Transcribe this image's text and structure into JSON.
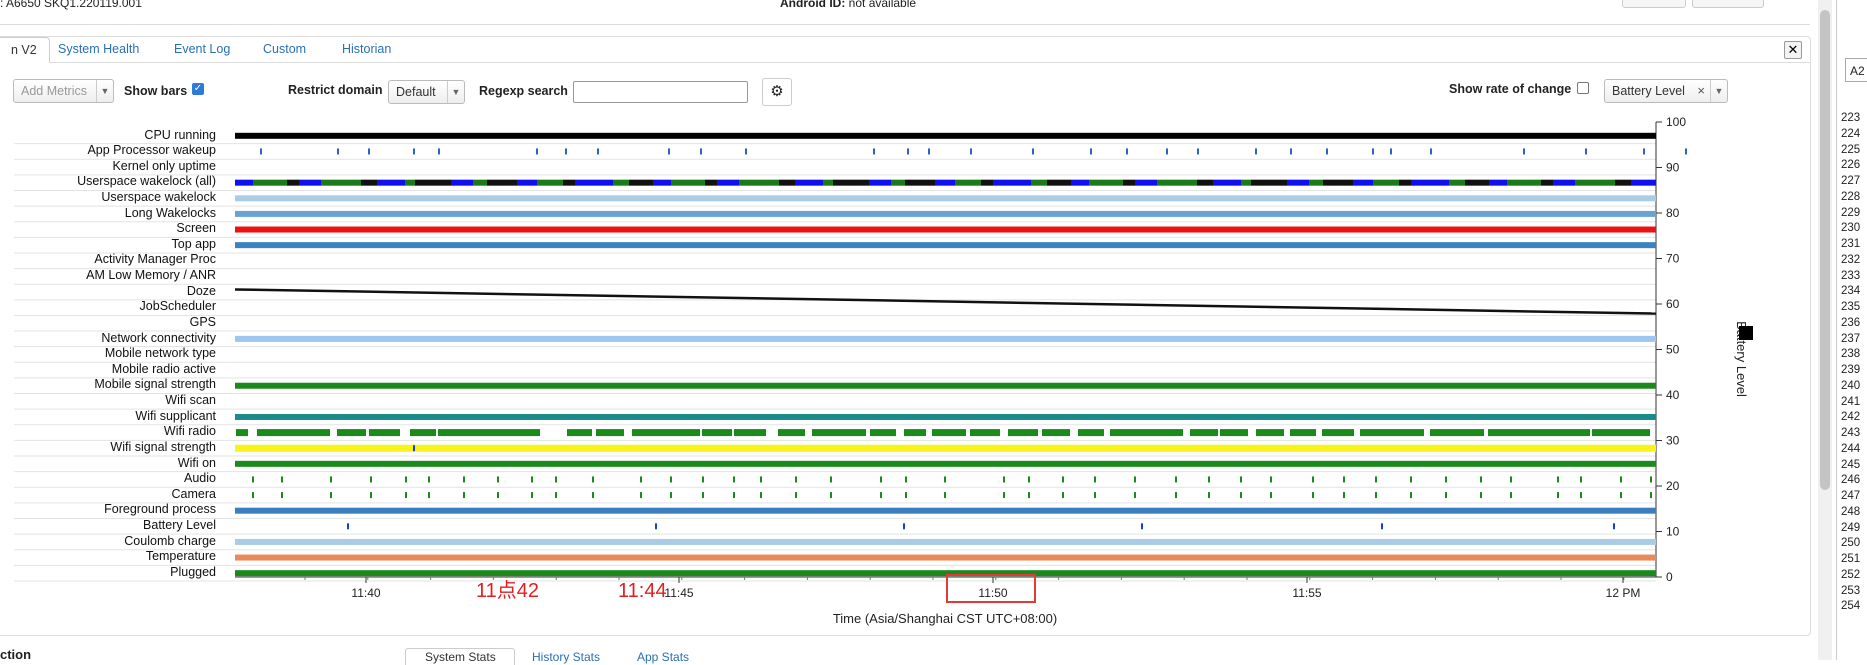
{
  "header": {
    "device_text": ": A6650 SKQ1.220119.001",
    "android_id_label": "Android ID:",
    "android_id_value": "not available"
  },
  "tabs": [
    {
      "label": "n V2",
      "active": true
    },
    {
      "label": "System Health",
      "active": false
    },
    {
      "label": "Event Log",
      "active": false
    },
    {
      "label": "Custom",
      "active": false
    },
    {
      "label": "Historian",
      "active": false
    }
  ],
  "toolbar": {
    "add_metrics_placeholder": "Add Metrics",
    "show_bars_label": "Show bars",
    "show_bars_checked": true,
    "restrict_domain_label": "Restrict domain",
    "restrict_domain_value": "Default",
    "regexp_label": "Regexp search",
    "regexp_value": "",
    "show_rate_label": "Show rate of change",
    "show_rate_checked": false,
    "metric_select_value": "Battery Level",
    "metric_select_clear": "×"
  },
  "chart": {
    "y_axis_label": "Battery Level",
    "y_ticks": [
      "100",
      "90",
      "80",
      "70",
      "60",
      "50",
      "40",
      "30",
      "20",
      "10",
      "0"
    ],
    "x_ticks": [
      "11:40",
      "11:45",
      "11:50",
      "11:55",
      "12 PM"
    ],
    "x_axis_label": "Time (Asia/Shanghai CST UTC+08:00)",
    "rows": [
      "CPU running",
      "App Processor wakeup",
      "Kernel only uptime",
      "Userspace wakelock (all)",
      "Userspace wakelock",
      "Long Wakelocks",
      "Screen",
      "Top app",
      "Activity Manager Proc",
      "AM Low Memory / ANR",
      "Doze",
      "JobScheduler",
      "GPS",
      "Network connectivity",
      "Mobile network type",
      "Mobile radio active",
      "Mobile signal strength",
      "Wifi scan",
      "Wifi supplicant",
      "Wifi radio",
      "Wifi signal strength",
      "Wifi on",
      "Audio",
      "Camera",
      "Foreground process",
      "Battery Level",
      "Coulomb charge",
      "Temperature",
      "Plugged"
    ],
    "colors": {
      "cpu": "#000000",
      "wakeup": "#2a62c9",
      "userspace_all_a": "#1a7a1a",
      "userspace_all_b": "#1010ee",
      "light_blue": "#a9cde9",
      "long_wakelocks": "#6aa3d3",
      "screen": "#ee1111",
      "top_app": "#3b82c4",
      "net": "#9fc6ee",
      "green": "#1a8a1a",
      "teal": "#1a8a8a",
      "yellow": "#f7f41d",
      "fg": "#3b7fc0",
      "battery_tick": "#1a40d0",
      "coulomb": "#aacbe4",
      "temp": "#e88a5c",
      "plugged": "#1a8a1a"
    }
  },
  "chart_data": {
    "type": "line",
    "x": [
      "11:38",
      "12:01"
    ],
    "y": [
      63.2,
      57.9
    ],
    "xlabel": "Time (Asia/Shanghai CST UTC+08:00)",
    "ylabel": "Battery Level",
    "ylim": [
      0,
      100
    ],
    "x_tick_labels": [
      "11:40",
      "11:45",
      "11:50",
      "11:55",
      "12 PM"
    ]
  },
  "annotations": [
    {
      "text": "11点42"
    },
    {
      "text": "11:44"
    }
  ],
  "right_pane": {
    "input_value": "A2",
    "line_numbers": [
      "223",
      "224",
      "225",
      "226",
      "227",
      "228",
      "229",
      "230",
      "231",
      "232",
      "233",
      "234",
      "235",
      "236",
      "237",
      "238",
      "239",
      "240",
      "241",
      "242",
      "243",
      "244",
      "245",
      "246",
      "247",
      "248",
      "249",
      "250",
      "251",
      "252",
      "253",
      "254"
    ]
  },
  "bottom": {
    "section_text": "ction",
    "subtabs": [
      "System Stats",
      "History Stats",
      "App Stats"
    ]
  }
}
